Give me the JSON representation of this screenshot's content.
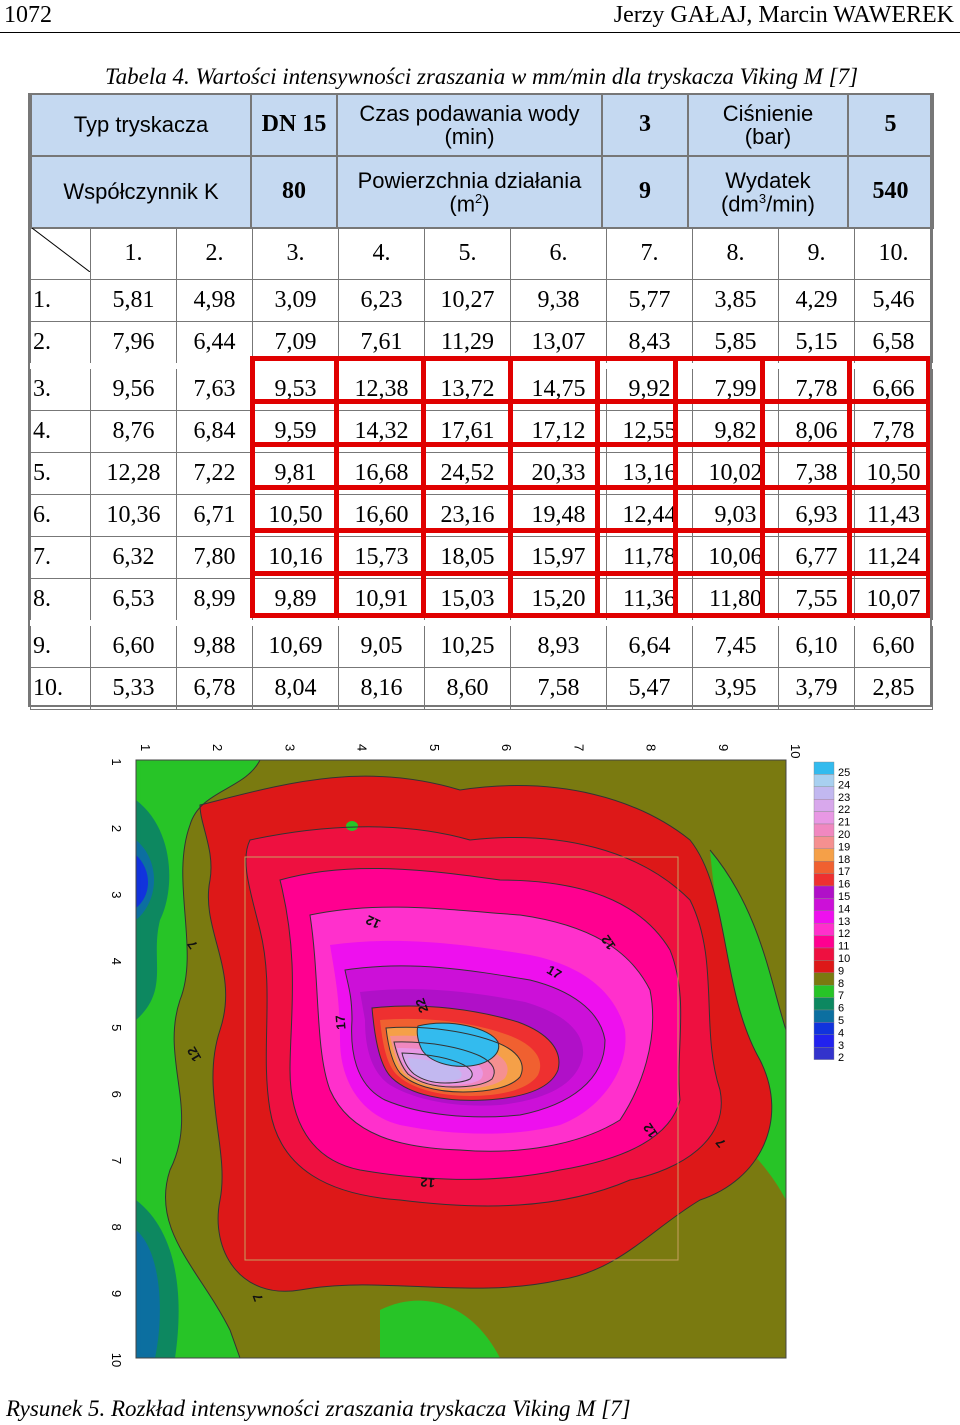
{
  "header": {
    "page_number": "1072",
    "authors": "Jerzy GAŁAJ, Marcin WAWEREK"
  },
  "table_caption": "Tabela 4. Wartości intensywności zraszania w mm/min dla tryskacza Viking M [7]",
  "table_header": {
    "row1": [
      "Typ tryskacza",
      "DN 15",
      "Czas podawania wody",
      "(min)",
      "3",
      "Ciśnienie",
      "(bar)",
      "5"
    ],
    "row2": [
      "Współczynnik K",
      "80",
      "Powierzchnia działania",
      "(m",
      "2",
      ")",
      "9",
      "Wydatek",
      "(dm",
      "3",
      "/min)",
      "540"
    ]
  },
  "columns": [
    "1.",
    "2.",
    "3.",
    "4.",
    "5.",
    "6.",
    "7.",
    "8.",
    "9.",
    "10."
  ],
  "rows": [
    {
      "label": "1.",
      "values": [
        "5,81",
        "4,98",
        "3,09",
        "6,23",
        "10,27",
        "9,38",
        "5,77",
        "3,85",
        "4,29",
        "5,46"
      ]
    },
    {
      "label": "2.",
      "values": [
        "7,96",
        "6,44",
        "7,09",
        "7,61",
        "11,29",
        "13,07",
        "8,43",
        "5,85",
        "5,15",
        "6,58"
      ]
    },
    {
      "label": "3.",
      "values": [
        "9,56",
        "7,63",
        "9,53",
        "12,38",
        "13,72",
        "14,75",
        "9,92",
        "7,99",
        "7,78",
        "6,66"
      ]
    },
    {
      "label": "4.",
      "values": [
        "8,76",
        "6,84",
        "9,59",
        "14,32",
        "17,61",
        "17,12",
        "12,55",
        "9,82",
        "8,06",
        "7,78"
      ]
    },
    {
      "label": "5.",
      "values": [
        "12,28",
        "7,22",
        "9,81",
        "16,68",
        "24,52",
        "20,33",
        "13,16",
        "10,02",
        "7,38",
        "10,50"
      ]
    },
    {
      "label": "6.",
      "values": [
        "10,36",
        "6,71",
        "10,50",
        "16,60",
        "23,16",
        "19,48",
        "12,44",
        "9,03",
        "6,93",
        "11,43"
      ]
    },
    {
      "label": "7.",
      "values": [
        "6,32",
        "7,80",
        "10,16",
        "15,73",
        "18,05",
        "15,97",
        "11,78",
        "10,06",
        "6,77",
        "11,24"
      ]
    },
    {
      "label": "8.",
      "values": [
        "6,53",
        "8,99",
        "9,89",
        "10,91",
        "15,03",
        "15,20",
        "11,36",
        "11,80",
        "7,55",
        "10,07"
      ]
    },
    {
      "label": "9.",
      "values": [
        "6,60",
        "9,88",
        "10,69",
        "9,05",
        "10,25",
        "8,93",
        "6,64",
        "7,45",
        "6,10",
        "6,60"
      ]
    },
    {
      "label": "10.",
      "values": [
        "5,33",
        "6,78",
        "8,04",
        "8,16",
        "8,60",
        "7,58",
        "5,47",
        "3,95",
        "3,79",
        "2,85"
      ]
    }
  ],
  "chart_data": {
    "type": "heatmap",
    "x_ticks": [
      "1",
      "2",
      "3",
      "4",
      "5",
      "6",
      "7",
      "8",
      "9",
      "10"
    ],
    "y_ticks": [
      "1",
      "2",
      "3",
      "4",
      "5",
      "6",
      "7",
      "8",
      "9",
      "10"
    ],
    "contour_labels": [
      "12",
      "12",
      "7",
      "17",
      "22",
      "17",
      "12",
      "12",
      "12",
      "7",
      "7"
    ],
    "legend_levels": [
      "25",
      "24",
      "23",
      "22",
      "21",
      "20",
      "19",
      "18",
      "17",
      "16",
      "15",
      "14",
      "13",
      "12",
      "11",
      "10",
      "9",
      "8",
      "7",
      "6",
      "5",
      "4",
      "3",
      "2"
    ],
    "legend_colors": [
      "#33bbee",
      "#a8d0f0",
      "#c2b8f0",
      "#d8a8ec",
      "#e898e4",
      "#f088c0",
      "#f59090",
      "#f5a048",
      "#f06030",
      "#ee3030",
      "#b010c8",
      "#cc10d8",
      "#ee10ee",
      "#ff30cc",
      "#ff0090",
      "#ee1040",
      "#dd1818",
      "#7a7a10",
      "#27c427",
      "#0d8860",
      "#0c6fa0",
      "#1133dd",
      "#2222ee",
      "#3333cc"
    ]
  },
  "figure_caption": "Rysunek 5. Rozkład intensywności zraszania tryskacza Viking M [7]"
}
